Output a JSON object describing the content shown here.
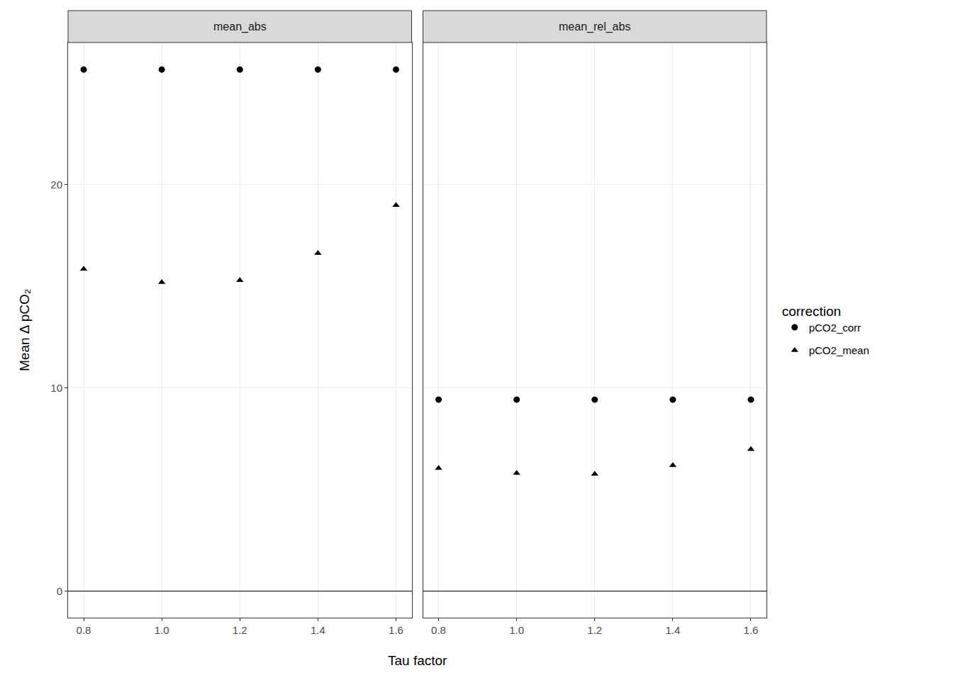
{
  "chart_data": {
    "type": "scatter",
    "x_label": "Tau factor",
    "y_label": "Mean Δ pCO₂",
    "legend_title": "correction",
    "legend": "right",
    "grid": true,
    "xlim": [
      0.76,
      1.64
    ],
    "ylim": [
      -1.3,
      27
    ],
    "xticks": [
      0.8,
      {
        "value": 1,
        "label": "1.0"
      },
      1.2,
      1.4,
      1.6
    ],
    "yticks": [
      0,
      10,
      20
    ],
    "panels": [
      {
        "title": "mean_abs",
        "x": [
          0.8,
          1.0,
          1.2,
          1.4,
          1.6
        ],
        "series": [
          {
            "name": "pCO2_corr",
            "color": "#000000",
            "marker": "circle",
            "values": [
              25.67,
              25.67,
              25.67,
              25.67,
              25.67
            ]
          },
          {
            "name": "pCO2_mean",
            "color": "#000000",
            "marker": "triangle",
            "values": [
              15.86,
              15.2,
              15.3,
              16.63,
              18.99
            ]
          }
        ]
      },
      {
        "title": "mean_rel_abs",
        "x": [
          0.8,
          1.0,
          1.2,
          1.4,
          1.6
        ],
        "series": [
          {
            "name": "pCO2_corr",
            "color": "#000000",
            "marker": "circle",
            "values": [
              9.43,
              9.43,
              9.43,
              9.43,
              9.43
            ]
          },
          {
            "name": "pCO2_mean",
            "color": "#000000",
            "marker": "triangle",
            "values": [
              6.05,
              5.81,
              5.77,
              6.19,
              6.99
            ]
          }
        ]
      }
    ]
  }
}
